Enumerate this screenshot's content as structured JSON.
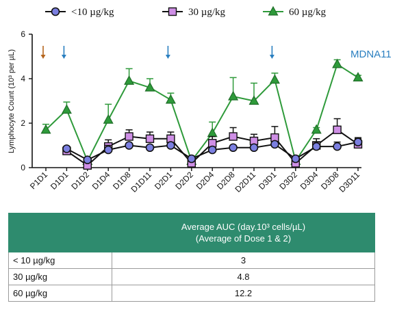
{
  "chart_data": {
    "type": "line",
    "ylabel": "Lymphocyte Count (10³ per µL)",
    "ylim": [
      0,
      6
    ],
    "yticks": [
      "0",
      "2",
      "4",
      "6"
    ],
    "categories": [
      "P1D1",
      "D1D1",
      "D1D2",
      "D1D4",
      "D1D8",
      "D1D11",
      "D2D1",
      "D2D2",
      "D2D4",
      "D2D8",
      "D2D11",
      "D3D1",
      "D3D2",
      "D3D4",
      "D3D8",
      "D3D11"
    ],
    "legend_position": "top",
    "annotation": "MDNA11",
    "annotation_color": "#2a7fc0",
    "arrows": [
      {
        "category": "P1D1",
        "color": "#b5651d"
      },
      {
        "category": "D1D1",
        "color": "#2a7fc0"
      },
      {
        "category": "D2D1",
        "color": "#2a7fc0"
      },
      {
        "category": "D3D1",
        "color": "#2a7fc0"
      }
    ],
    "series": [
      {
        "name": "<10 µg/kg",
        "marker": "circle",
        "color": "#111111",
        "fill": "#7b7fe0",
        "values": [
          null,
          0.85,
          0.35,
          0.8,
          1.0,
          0.9,
          1.0,
          0.4,
          0.8,
          0.9,
          0.9,
          1.05,
          0.4,
          0.95,
          0.95,
          1.15
        ],
        "errors": [
          null,
          0.1,
          0.1,
          0.2,
          0.1,
          0.1,
          0.1,
          0.1,
          0.1,
          0.1,
          0.1,
          0.1,
          0.1,
          0.2,
          0.2,
          0.15
        ]
      },
      {
        "name": "30 µg/kg",
        "marker": "square",
        "color": "#111111",
        "fill": "#cf8fe6",
        "values": [
          null,
          0.75,
          0.1,
          0.95,
          1.4,
          1.3,
          1.3,
          0.2,
          1.1,
          1.4,
          1.2,
          1.35,
          0.2,
          1.0,
          1.7,
          1.05
        ],
        "errors": [
          null,
          0.1,
          0.1,
          0.3,
          0.3,
          0.3,
          0.3,
          0.1,
          0.3,
          0.4,
          0.3,
          0.5,
          0.1,
          0.3,
          0.5,
          0.3
        ]
      },
      {
        "name": "60 µg/kg",
        "marker": "triangle",
        "color": "#2e9a3a",
        "fill": "#2e9a3a",
        "values": [
          1.7,
          2.6,
          0.3,
          2.15,
          3.9,
          3.6,
          3.05,
          0.3,
          1.55,
          3.2,
          3.0,
          3.95,
          0.3,
          1.7,
          4.65,
          4.05
        ],
        "errors": [
          0.25,
          0.35,
          0.1,
          0.7,
          0.55,
          0.4,
          0.3,
          0.1,
          0.5,
          0.85,
          0.8,
          0.3,
          0.1,
          0.1,
          0.2,
          0.1
        ]
      }
    ]
  },
  "table": {
    "header_line1": "Average AUC (day.10³ cells/µL)",
    "header_line2": "(Average of Dose 1 & 2)",
    "rows": [
      {
        "label": "< 10 µg/kg",
        "value": "3"
      },
      {
        "label": "30 µg/kg",
        "value": "4.8"
      },
      {
        "label": "60 µg/kg",
        "value": "12.2"
      }
    ]
  }
}
